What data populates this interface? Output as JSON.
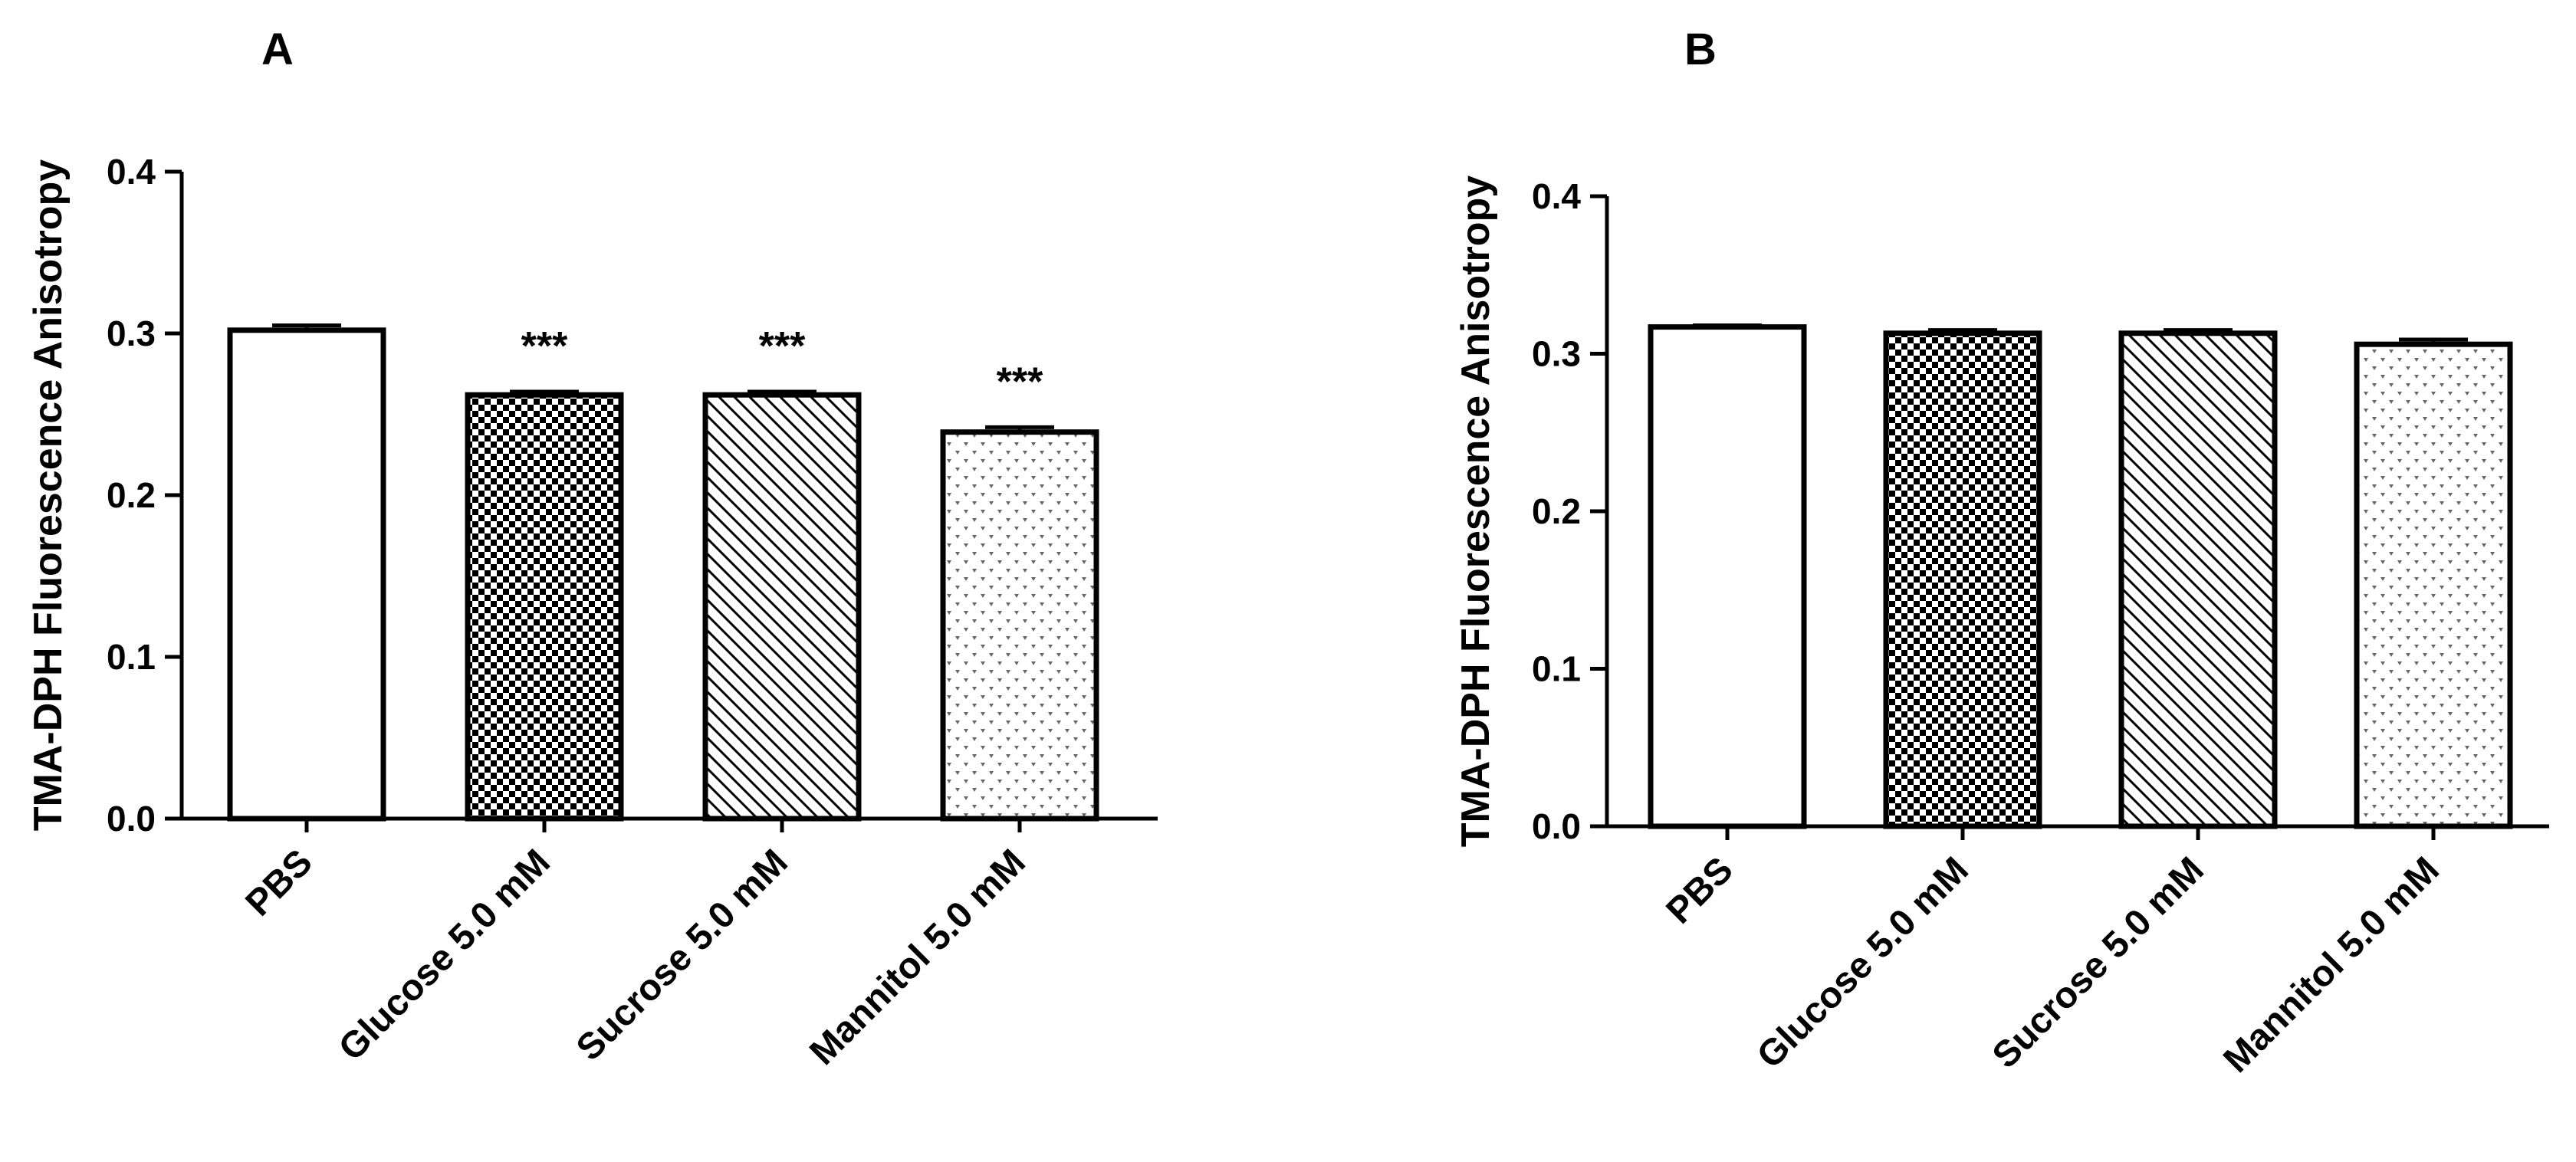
{
  "chart_data": [
    {
      "type": "bar",
      "panel": "A",
      "ylabel": "TMA-DPH Fluorescence Anisotropy",
      "xlabel": "",
      "ylim": [
        0,
        0.4
      ],
      "yticks": [
        "0.0",
        "0.1",
        "0.2",
        "0.3",
        "0.4"
      ],
      "categories": [
        "PBS",
        "Glucose 5.0 mM",
        "Sucrose 5.0 mM",
        "Mannitol 5.0 mM"
      ],
      "values": [
        0.302,
        0.262,
        0.262,
        0.239
      ],
      "errors": [
        0.003,
        0.002,
        0.002,
        0.003
      ],
      "annotations": [
        "",
        "***",
        "***",
        "***"
      ],
      "fills": [
        "none",
        "checker",
        "diagonal",
        "dots"
      ]
    },
    {
      "type": "bar",
      "panel": "B",
      "ylabel": "TMA-DPH Fluorescence Anisotropy",
      "xlabel": "",
      "ylim": [
        0,
        0.4
      ],
      "yticks": [
        "0.0",
        "0.1",
        "0.2",
        "0.3",
        "0.4"
      ],
      "categories": [
        "PBS",
        "Glucose 5.0 mM",
        "Sucrose 5.0 mM",
        "Mannitol 5.0 mM"
      ],
      "values": [
        0.317,
        0.313,
        0.313,
        0.306
      ],
      "errors": [
        0.001,
        0.002,
        0.002,
        0.003
      ],
      "annotations": [
        "",
        "",
        "",
        ""
      ],
      "fills": [
        "none",
        "checker",
        "diagonal",
        "dots"
      ]
    }
  ],
  "colors": {
    "ink": "#000000",
    "background": "#ffffff"
  }
}
